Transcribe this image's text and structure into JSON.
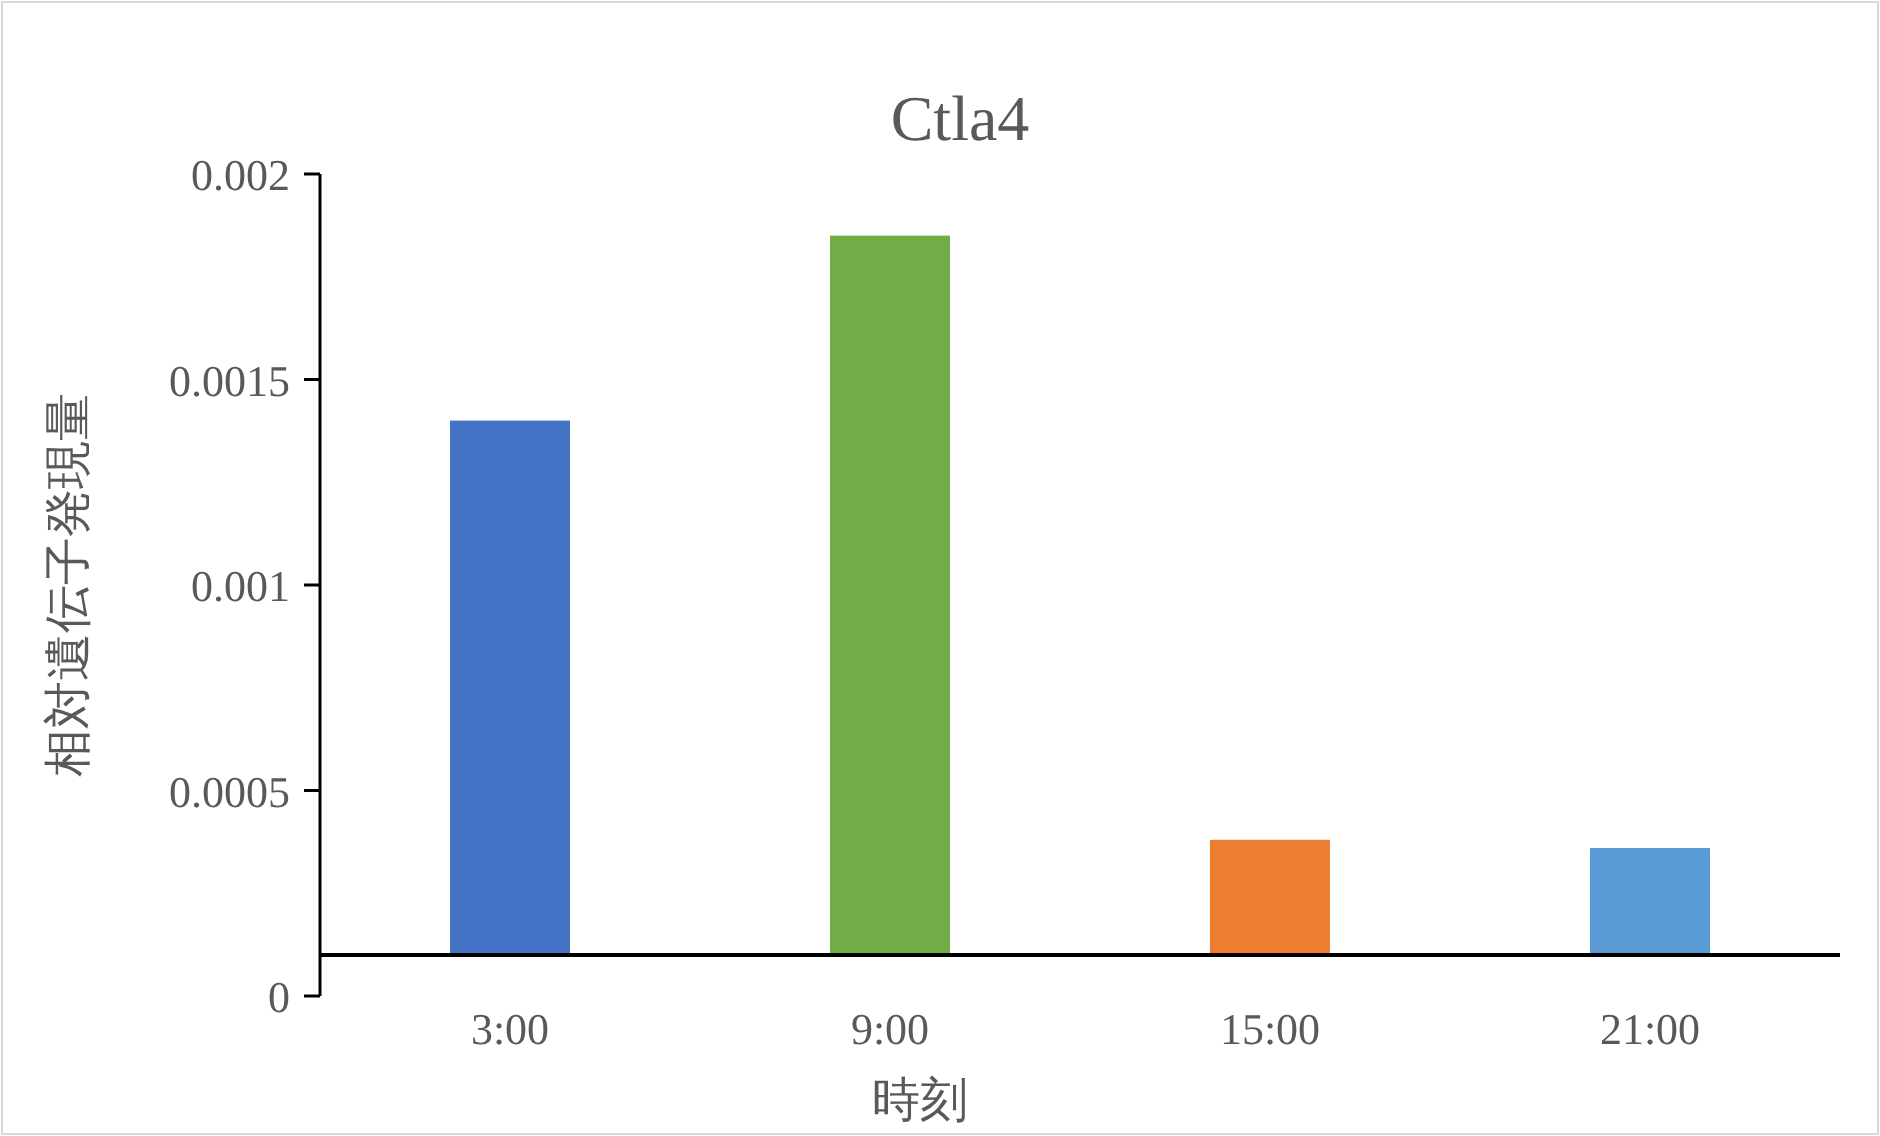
{
  "chart_data": {
    "type": "bar",
    "title": "Ctla4",
    "xlabel": "時刻",
    "ylabel": "相対遺伝子発現量",
    "categories": [
      "3:00",
      "9:00",
      "15:00",
      "21:00"
    ],
    "values": [
      0.0013,
      0.00175,
      0.00028,
      0.00026
    ],
    "base": [
      0.0001,
      0.0001,
      0.0001,
      0.0001
    ],
    "colors": [
      "#4472c4",
      "#70ad47",
      "#ed7d31",
      "#5b9bd5"
    ],
    "ylim": [
      0,
      0.002
    ],
    "yticks": [
      0,
      0.0005,
      0.001,
      0.0015,
      0.002
    ],
    "grid": false
  }
}
